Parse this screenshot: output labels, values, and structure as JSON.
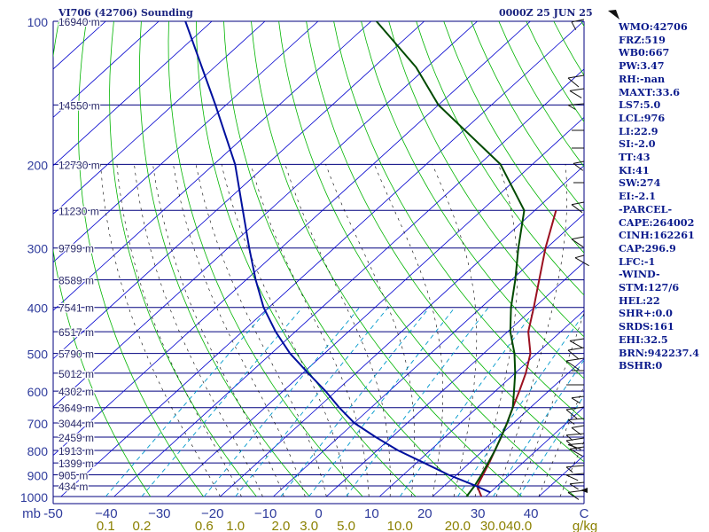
{
  "header": {
    "left_title": "VI706 (42706) Sounding",
    "right_title": "0000Z 25 JUN 25"
  },
  "indices": [
    "WMO:42706",
    "FRZ:519",
    "WB0:667",
    "PW:3.47",
    "RH:-nan",
    "MAXT:33.6",
    "LS7:5.0",
    "LCL:976",
    "LI:22.9",
    "SI:-2.0",
    "TT:43",
    "KI:41",
    "SW:274",
    "EI:-2.1",
    "-PARCEL-",
    "CAPE:264002",
    "CINH:162261",
    "CAP:296.9",
    "LFC:-1",
    "-WIND-",
    "STM:127/6",
    "HEL:22",
    "SHR+:0.0",
    "SRDS:161",
    "EHI:32.5",
    "BRN:942237.4",
    "BSHR:0"
  ],
  "colors": {
    "isobar": "#00007f",
    "isotherm": "#0000cd",
    "dry_adiabat": "#00b400",
    "moist_adiabat": "#000000",
    "mixing_ratio": "#0099cc",
    "temperature": "#9b1020",
    "dewpoint": "#004a00",
    "parcel": "#00109e",
    "label": "#2e3b9c",
    "mixing_label": "#8b8000"
  },
  "chart_data": {
    "type": "line",
    "title": "VI706 (42706) Sounding",
    "x_unit_label": "C",
    "y_unit_label": "mb",
    "mixing_unit_label": "g/kg",
    "xlim": [
      -50,
      50
    ],
    "ylim": [
      1000,
      100
    ],
    "y_scale": "log",
    "pressure_ticks": [
      100,
      200,
      300,
      400,
      500,
      600,
      700,
      800,
      900,
      1000
    ],
    "temperature_ticks": [
      -50,
      -40,
      -30,
      -20,
      -10,
      0,
      10,
      20,
      30,
      40
    ],
    "temperature_tick_labels": [
      "-50",
      "−40",
      "−30",
      "−20",
      "−10",
      "0",
      "10",
      "20",
      "30",
      "40"
    ],
    "mixing_ratio_labels": [
      "0.1",
      "0.2",
      "0.6",
      "1.0",
      "2.0",
      "3.0",
      "5.0",
      "10.0",
      "20.0",
      "30.0",
      "40.0"
    ],
    "mixing_ratio_values": [
      0.1,
      0.2,
      0.6,
      1.0,
      2.0,
      3.0,
      5.0,
      10.0,
      20.0,
      30.0,
      40.0
    ],
    "height_labels": [
      {
        "p": 100,
        "label": "16940 m"
      },
      {
        "p": 150,
        "label": "14550 m"
      },
      {
        "p": 200,
        "label": "12730 m"
      },
      {
        "p": 250,
        "label": "11230 m"
      },
      {
        "p": 300,
        "label": "9799 m"
      },
      {
        "p": 350,
        "label": "8589 m"
      },
      {
        "p": 400,
        "label": "7541 m"
      },
      {
        "p": 450,
        "label": "6517 m"
      },
      {
        "p": 500,
        "label": "5790 m"
      },
      {
        "p": 550,
        "label": "5012 m"
      },
      {
        "p": 600,
        "label": "4302 m"
      },
      {
        "p": 650,
        "label": "3649 m"
      },
      {
        "p": 700,
        "label": "3044 m"
      },
      {
        "p": 750,
        "label": "2459 m"
      },
      {
        "p": 800,
        "label": "1913 m"
      },
      {
        "p": 850,
        "label": "1399 m"
      },
      {
        "p": 900,
        "label": "905 m"
      },
      {
        "p": 950,
        "label": "434 m"
      }
    ],
    "series": [
      {
        "name": "temperature",
        "points": [
          [
            1000,
            29.2
          ],
          [
            950,
            26.2
          ],
          [
            900,
            25.0
          ],
          [
            850,
            23.7
          ],
          [
            800,
            22.2
          ],
          [
            750,
            20.6
          ],
          [
            700,
            18.8
          ],
          [
            650,
            16.7
          ],
          [
            600,
            14.5
          ],
          [
            550,
            12.0
          ],
          [
            500,
            8.8
          ],
          [
            450,
            3.9
          ],
          [
            400,
            -0.1
          ],
          [
            350,
            -4.8
          ],
          [
            300,
            -10.2
          ],
          [
            250,
            -16.0
          ]
        ]
      },
      {
        "name": "dewpoint",
        "points": [
          [
            1000,
            26.4
          ],
          [
            950,
            25.7
          ],
          [
            900,
            24.7
          ],
          [
            850,
            23.5
          ],
          [
            800,
            22.2
          ],
          [
            750,
            20.6
          ],
          [
            700,
            18.8
          ],
          [
            650,
            16.7
          ],
          [
            600,
            13.5
          ],
          [
            550,
            10.0
          ],
          [
            500,
            5.8
          ],
          [
            450,
            0.5
          ],
          [
            400,
            -4.4
          ],
          [
            350,
            -9.3
          ],
          [
            300,
            -15.3
          ],
          [
            250,
            -22.0
          ],
          [
            200,
            -36.0
          ],
          [
            150,
            -60.0
          ],
          [
            125,
            -72.0
          ],
          [
            100,
            -89.0
          ]
        ]
      },
      {
        "name": "parcel",
        "points": [
          [
            980,
            30.0
          ],
          [
            950,
            26.0
          ],
          [
            900,
            18.5
          ],
          [
            850,
            11.5
          ],
          [
            800,
            4.0
          ],
          [
            750,
            -3.0
          ],
          [
            700,
            -10.0
          ],
          [
            650,
            -16.0
          ],
          [
            600,
            -22.0
          ],
          [
            550,
            -29.0
          ],
          [
            500,
            -36.5
          ],
          [
            450,
            -43.7
          ],
          [
            400,
            -51.0
          ],
          [
            350,
            -58.2
          ],
          [
            300,
            -66.0
          ],
          [
            250,
            -75.0
          ],
          [
            200,
            -86.0
          ],
          [
            150,
            -102.0
          ],
          [
            100,
            -125.0
          ]
        ]
      }
    ]
  }
}
